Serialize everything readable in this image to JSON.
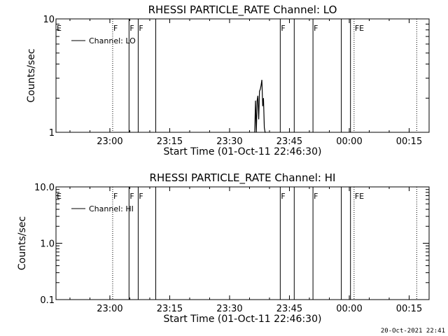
{
  "chart_data": [
    {
      "type": "line",
      "title": "RHESSI PARTICLE_RATE Channel: LO",
      "xlabel": "Start Time (01-Oct-11 22:46:30)",
      "ylabel": "Counts/sec",
      "x_unit": "minutes after 22:46:30",
      "xlim": [
        0,
        93.5
      ],
      "ylim": [
        1,
        10
      ],
      "yscale": "log",
      "x_ticks": [
        {
          "label": "23:00",
          "value": 13.5
        },
        {
          "label": "23:15",
          "value": 28.5
        },
        {
          "label": "23:30",
          "value": 43.5
        },
        {
          "label": "23:45",
          "value": 58.5
        },
        {
          "label": "00:00",
          "value": 73.5
        },
        {
          "label": "00:15",
          "value": 88.5
        }
      ],
      "y_ticks": [
        {
          "label": "10",
          "value": 10
        },
        {
          "label": "1",
          "value": 1
        }
      ],
      "legend": {
        "position": "top-left",
        "entries": [
          "Channel: LO"
        ]
      },
      "grid": false,
      "flags": [
        {
          "label": "E",
          "x": 0.0,
          "style": "solid"
        },
        {
          "label": "F",
          "x": 14.2,
          "style": "dotted"
        },
        {
          "label": "F",
          "x": 18.3,
          "style": "solid"
        },
        {
          "label": "F",
          "x": 20.6,
          "style": "solid"
        },
        {
          "label": "",
          "x": 25.0,
          "style": "solid"
        },
        {
          "label": "F",
          "x": 56.2,
          "style": "solid"
        },
        {
          "label": "",
          "x": 59.7,
          "style": "solid"
        },
        {
          "label": "F",
          "x": 64.4,
          "style": "solid"
        },
        {
          "label": "",
          "x": 71.5,
          "style": "solid"
        },
        {
          "label": "",
          "x": 73.8,
          "style": "solid"
        },
        {
          "label": "FE",
          "x": 74.7,
          "style": "dotted"
        },
        {
          "label": "",
          "x": 90.4,
          "style": "dotted"
        }
      ],
      "series": [
        {
          "x": [
            49.8,
            50.0,
            50.2,
            50.4,
            50.6,
            50.8,
            51.0,
            51.2,
            51.4,
            51.6,
            51.8,
            52.0,
            52.2,
            52.4,
            52.6
          ],
          "y": [
            1.0,
            1.9,
            1.0,
            1.9,
            2.1,
            1.3,
            2.3,
            2.4,
            2.6,
            2.9,
            1.7,
            2.0,
            1.1,
            1.0,
            1.0
          ]
        }
      ]
    },
    {
      "type": "line",
      "title": "RHESSI PARTICLE_RATE Channel: HI",
      "xlabel": "Start Time (01-Oct-11 22:46:30)",
      "ylabel": "Counts/sec",
      "x_unit": "minutes after 22:46:30",
      "xlim": [
        0,
        93.5
      ],
      "ylim": [
        0.1,
        10
      ],
      "yscale": "log",
      "x_ticks": [
        {
          "label": "23:00",
          "value": 13.5
        },
        {
          "label": "23:15",
          "value": 28.5
        },
        {
          "label": "23:30",
          "value": 43.5
        },
        {
          "label": "23:45",
          "value": 58.5
        },
        {
          "label": "00:00",
          "value": 73.5
        },
        {
          "label": "00:15",
          "value": 88.5
        }
      ],
      "y_ticks": [
        {
          "label": "10.0",
          "value": 10
        },
        {
          "label": "1.0",
          "value": 1
        },
        {
          "label": "0.1",
          "value": 0.1
        }
      ],
      "legend": {
        "position": "top-left",
        "entries": [
          "Channel: HI"
        ]
      },
      "grid": false,
      "flags": [
        {
          "label": "E",
          "x": 0.0,
          "style": "solid"
        },
        {
          "label": "F",
          "x": 14.2,
          "style": "dotted"
        },
        {
          "label": "F",
          "x": 18.3,
          "style": "solid"
        },
        {
          "label": "F",
          "x": 20.6,
          "style": "solid"
        },
        {
          "label": "",
          "x": 25.0,
          "style": "solid"
        },
        {
          "label": "F",
          "x": 56.2,
          "style": "solid"
        },
        {
          "label": "",
          "x": 59.7,
          "style": "solid"
        },
        {
          "label": "F",
          "x": 64.4,
          "style": "solid"
        },
        {
          "label": "",
          "x": 71.5,
          "style": "solid"
        },
        {
          "label": "",
          "x": 73.8,
          "style": "solid"
        },
        {
          "label": "FE",
          "x": 74.7,
          "style": "dotted"
        },
        {
          "label": "",
          "x": 90.4,
          "style": "dotted"
        }
      ],
      "series": [
        {
          "x": [],
          "y": []
        }
      ]
    }
  ],
  "footer_timestamp": "20-Oct-2021 22:41"
}
